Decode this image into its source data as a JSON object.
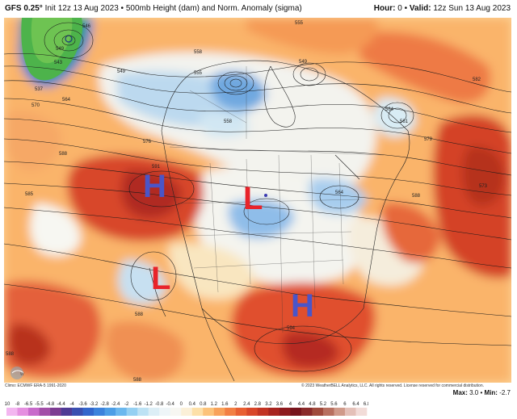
{
  "header": {
    "model": "GFS 0.25°",
    "init": "Init 12z 13 Aug 2023",
    "separator": "•",
    "field": "500mb Height (dam) and Norm. Anomaly (sigma)",
    "hour_label": "Hour:",
    "hour_value": "0",
    "valid_label": "Valid:",
    "valid_value": "12z Sun 13 Aug 2023"
  },
  "footer": {
    "climo": "Climo: ECMWF ERA-5 1991-2020",
    "copyright": "© 2023 WeatherBELL Analytics, LLC. All rights reserved. License reserved for commercial distribution.",
    "max_label": "Max:",
    "max_value": "3.0",
    "min_label": "Min:",
    "min_value": "-2.7"
  },
  "colorbar": {
    "ticks": [
      "-10",
      "-8",
      "-6.5",
      "-5.5",
      "-4.8",
      "-4.4",
      "-4",
      "-3.6",
      "-3.2",
      "-2.8",
      "-2.4",
      "-2",
      "-1.6",
      "-1.2",
      "-0.8",
      "-0.4",
      "0",
      "0.4",
      "0.8",
      "1.2",
      "1.6",
      "2",
      "2.4",
      "2.8",
      "3.2",
      "3.6",
      "4",
      "4.4",
      "4.8",
      "5.2",
      "5.6",
      "6",
      "6.4",
      "6.8"
    ],
    "colors": [
      "#f3b6f0",
      "#e58fe0",
      "#c86acb",
      "#a34ea8",
      "#7d3c92",
      "#4f3a95",
      "#3a4fb0",
      "#3366cc",
      "#3c82dc",
      "#4d9ee6",
      "#6cb8ee",
      "#95d0f2",
      "#bde2f4",
      "#dceef6",
      "#eef5f8",
      "#f7f7f2",
      "#fbf0d8",
      "#fde0a8",
      "#fcc37a",
      "#f8a25a",
      "#f27f43",
      "#e85f32",
      "#d84629",
      "#c23323",
      "#a8241f",
      "#8e1a1d",
      "#77141c",
      "#8a2a2a",
      "#a04a3c",
      "#b87060",
      "#d09a8a",
      "#e4c0b8",
      "#f2dcd8"
    ]
  },
  "pressure_centers": [
    {
      "letter": "H",
      "color": "#4a55c8",
      "type": "high"
    },
    {
      "letter": "L",
      "color": "#e8232a",
      "type": "low"
    },
    {
      "letter": "L",
      "color": "#e8232a",
      "type": "low"
    },
    {
      "letter": "H",
      "color": "#4a55c8",
      "type": "high"
    }
  ],
  "contour_labels": [
    "549",
    "543",
    "537",
    "570",
    "546",
    "564",
    "558",
    "555",
    "549",
    "549",
    "576",
    "555",
    "561",
    "564",
    "579",
    "582",
    "588",
    "591",
    "585",
    "558",
    "564",
    "594",
    "588",
    "588",
    "588",
    "585",
    "588",
    "573"
  ]
}
